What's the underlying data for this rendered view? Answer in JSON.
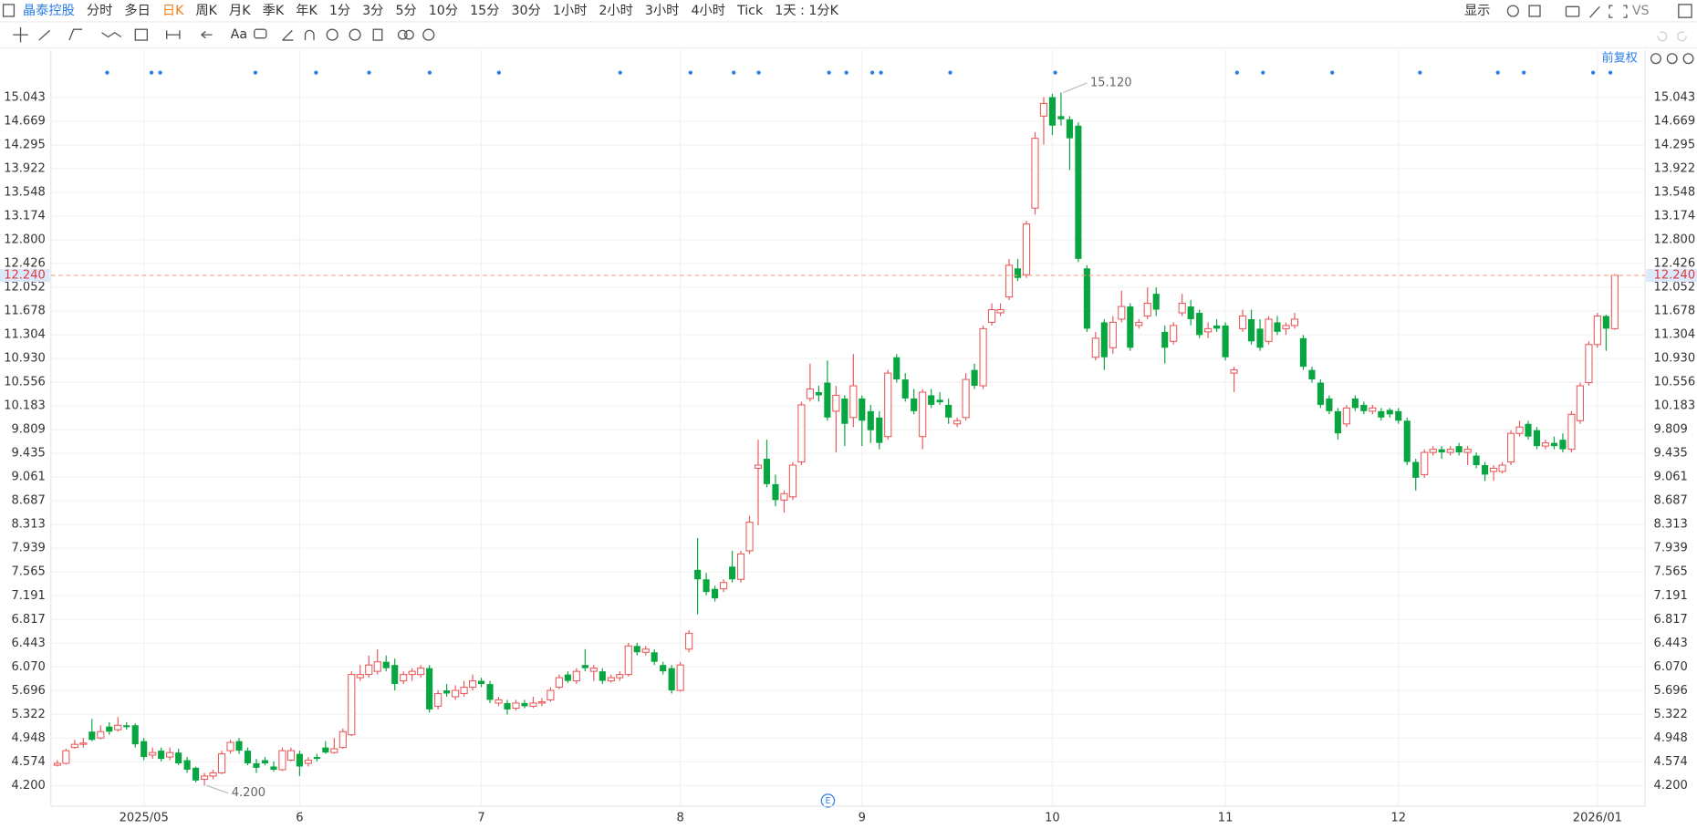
{
  "toolbar": {
    "symbol": "晶泰控股",
    "periods": [
      {
        "label": "分时"
      },
      {
        "label": "多日"
      },
      {
        "label": "日K",
        "active": true
      },
      {
        "label": "周K"
      },
      {
        "label": "月K"
      },
      {
        "label": "季K"
      },
      {
        "label": "年K"
      },
      {
        "label": "1分"
      },
      {
        "label": "3分"
      },
      {
        "label": "5分"
      },
      {
        "label": "10分"
      },
      {
        "label": "15分"
      },
      {
        "label": "30分"
      },
      {
        "label": "1小时"
      },
      {
        "label": "2小时"
      },
      {
        "label": "3小时"
      },
      {
        "label": "4小时"
      },
      {
        "label": "Tick"
      }
    ],
    "interval": "1天 : 1分K",
    "display": "显示",
    "compare": "VS",
    "text_tool": "Aa"
  },
  "chart_data": {
    "type": "candlestick",
    "adjustment": "前复权",
    "categories": [
      null,
      null,
      null,
      null,
      null,
      null,
      null,
      null,
      null,
      null,
      "2025/05",
      null,
      null,
      null,
      null,
      null,
      null,
      null,
      null,
      null,
      null,
      null,
      null,
      null,
      null,
      null,
      null,
      null,
      "6",
      null,
      null,
      null,
      null,
      null,
      null,
      null,
      null,
      null,
      null,
      null,
      null,
      null,
      null,
      null,
      null,
      null,
      null,
      null,
      null,
      "7",
      null,
      null,
      null,
      null,
      null,
      null,
      null,
      null,
      null,
      null,
      null,
      null,
      null,
      null,
      null,
      null,
      null,
      null,
      null,
      null,
      null,
      null,
      "8",
      null,
      null,
      null,
      null,
      null,
      null,
      null,
      null,
      null,
      null,
      null,
      null,
      null,
      null,
      null,
      null,
      null,
      null,
      null,
      null,
      "9",
      null,
      null,
      null,
      null,
      null,
      null,
      null,
      null,
      null,
      null,
      null,
      null,
      null,
      null,
      null,
      null,
      null,
      null,
      null,
      null,
      null,
      "10",
      null,
      null,
      null,
      null,
      null,
      null,
      null,
      null,
      null,
      null,
      null,
      null,
      null,
      null,
      null,
      null,
      null,
      null,
      null,
      "11",
      null,
      null,
      null,
      null,
      null,
      null,
      null,
      null,
      null,
      null,
      null,
      null,
      null,
      null,
      null,
      null,
      null,
      null,
      null,
      "12",
      null,
      null,
      null,
      null,
      null,
      null,
      null,
      null,
      null,
      null,
      null,
      null,
      null,
      null,
      null,
      null,
      null,
      null,
      null,
      null,
      null,
      null,
      "2026/01",
      null,
      null
    ],
    "ohlc": [
      [
        4.52,
        4.6,
        4.5,
        4.55
      ],
      [
        4.55,
        4.78,
        4.53,
        4.75
      ],
      [
        4.8,
        4.92,
        4.78,
        4.85
      ],
      [
        4.85,
        4.95,
        4.8,
        4.87
      ],
      [
        5.05,
        5.25,
        4.9,
        4.92
      ],
      [
        4.95,
        5.15,
        4.93,
        5.05
      ],
      [
        5.13,
        5.2,
        5.0,
        5.05
      ],
      [
        5.08,
        5.28,
        5.05,
        5.15
      ],
      [
        5.15,
        5.2,
        5.08,
        5.12
      ],
      [
        5.15,
        5.18,
        4.8,
        4.85
      ],
      [
        4.9,
        4.95,
        4.6,
        4.65
      ],
      [
        4.68,
        4.8,
        4.62,
        4.72
      ],
      [
        4.75,
        4.8,
        4.58,
        4.62
      ],
      [
        4.65,
        4.8,
        4.6,
        4.72
      ],
      [
        4.72,
        4.78,
        4.52,
        4.55
      ],
      [
        4.6,
        4.65,
        4.4,
        4.45
      ],
      [
        4.48,
        4.5,
        4.25,
        4.28
      ],
      [
        4.3,
        4.4,
        4.2,
        4.35
      ],
      [
        4.35,
        4.45,
        4.3,
        4.4
      ],
      [
        4.4,
        4.75,
        4.38,
        4.7
      ],
      [
        4.75,
        4.92,
        4.7,
        4.88
      ],
      [
        4.9,
        4.95,
        4.7,
        4.75
      ],
      [
        4.75,
        4.8,
        4.52,
        4.55
      ],
      [
        4.55,
        4.62,
        4.4,
        4.48
      ],
      [
        4.6,
        4.65,
        4.52,
        4.55
      ],
      [
        4.5,
        4.58,
        4.42,
        4.45
      ],
      [
        4.45,
        4.8,
        4.43,
        4.75
      ],
      [
        4.6,
        4.8,
        4.58,
        4.75
      ],
      [
        4.7,
        4.75,
        4.35,
        4.5
      ],
      [
        4.55,
        4.65,
        4.5,
        4.6
      ],
      [
        4.65,
        4.7,
        4.58,
        4.62
      ],
      [
        4.8,
        4.9,
        4.7,
        4.72
      ],
      [
        4.72,
        4.95,
        4.7,
        4.78
      ],
      [
        4.8,
        5.1,
        4.78,
        5.05
      ],
      [
        5.0,
        6.0,
        4.98,
        5.95
      ],
      [
        5.9,
        6.1,
        5.85,
        5.95
      ],
      [
        5.95,
        6.25,
        5.9,
        6.1
      ],
      [
        6.0,
        6.35,
        5.95,
        6.15
      ],
      [
        6.15,
        6.25,
        6.0,
        6.05
      ],
      [
        6.1,
        6.2,
        5.7,
        5.8
      ],
      [
        5.85,
        6.0,
        5.8,
        5.95
      ],
      [
        5.95,
        6.05,
        5.85,
        6.0
      ],
      [
        5.95,
        6.1,
        5.9,
        6.05
      ],
      [
        6.05,
        6.1,
        5.35,
        5.4
      ],
      [
        5.45,
        5.7,
        5.4,
        5.65
      ],
      [
        5.7,
        5.8,
        5.6,
        5.65
      ],
      [
        5.6,
        5.78,
        5.55,
        5.7
      ],
      [
        5.65,
        5.85,
        5.6,
        5.75
      ],
      [
        5.75,
        5.95,
        5.7,
        5.85
      ],
      [
        5.85,
        5.9,
        5.75,
        5.8
      ],
      [
        5.8,
        5.85,
        5.5,
        5.55
      ],
      [
        5.5,
        5.6,
        5.45,
        5.55
      ],
      [
        5.5,
        5.55,
        5.32,
        5.4
      ],
      [
        5.42,
        5.55,
        5.38,
        5.5
      ],
      [
        5.5,
        5.55,
        5.42,
        5.45
      ],
      [
        5.45,
        5.6,
        5.42,
        5.5
      ],
      [
        5.5,
        5.58,
        5.45,
        5.52
      ],
      [
        5.55,
        5.75,
        5.52,
        5.7
      ],
      [
        5.75,
        5.95,
        5.72,
        5.9
      ],
      [
        5.95,
        6.0,
        5.82,
        5.85
      ],
      [
        5.85,
        6.05,
        5.8,
        6.0
      ],
      [
        6.1,
        6.35,
        6.0,
        6.05
      ],
      [
        6.0,
        6.1,
        5.85,
        6.05
      ],
      [
        6.0,
        6.05,
        5.8,
        5.85
      ],
      [
        5.85,
        5.95,
        5.82,
        5.9
      ],
      [
        5.9,
        6.0,
        5.85,
        5.95
      ],
      [
        5.95,
        6.45,
        5.92,
        6.4
      ],
      [
        6.4,
        6.45,
        6.25,
        6.3
      ],
      [
        6.3,
        6.4,
        6.25,
        6.35
      ],
      [
        6.3,
        6.35,
        6.1,
        6.15
      ],
      [
        6.1,
        6.15,
        5.95,
        6.0
      ],
      [
        6.05,
        6.1,
        5.65,
        5.7
      ],
      [
        5.7,
        6.15,
        5.68,
        6.1
      ],
      [
        6.35,
        6.65,
        6.3,
        6.6
      ],
      [
        7.6,
        8.1,
        6.9,
        7.45
      ],
      [
        7.45,
        7.55,
        7.2,
        7.25
      ],
      [
        7.3,
        7.35,
        7.1,
        7.15
      ],
      [
        7.3,
        7.45,
        7.25,
        7.4
      ],
      [
        7.65,
        7.9,
        7.4,
        7.45
      ],
      [
        7.45,
        7.9,
        7.4,
        7.85
      ],
      [
        7.9,
        8.45,
        7.85,
        8.35
      ],
      [
        9.2,
        9.65,
        8.3,
        9.25
      ],
      [
        9.35,
        9.65,
        8.9,
        8.95
      ],
      [
        8.95,
        9.1,
        8.6,
        8.7
      ],
      [
        8.7,
        8.85,
        8.5,
        8.8
      ],
      [
        8.75,
        9.3,
        8.7,
        9.25
      ],
      [
        9.3,
        10.25,
        9.25,
        10.2
      ],
      [
        10.3,
        10.85,
        10.25,
        10.45
      ],
      [
        10.4,
        10.5,
        10.25,
        10.35
      ],
      [
        10.55,
        10.9,
        9.95,
        10.0
      ],
      [
        10.1,
        10.5,
        9.45,
        10.35
      ],
      [
        10.3,
        10.35,
        9.55,
        9.9
      ],
      [
        10.0,
        11.0,
        9.85,
        10.5
      ],
      [
        10.3,
        10.35,
        9.55,
        9.95
      ],
      [
        10.1,
        10.2,
        9.6,
        9.8
      ],
      [
        10.0,
        10.1,
        9.5,
        9.6
      ],
      [
        9.7,
        10.75,
        9.65,
        10.7
      ],
      [
        10.95,
        11.0,
        10.55,
        10.6
      ],
      [
        10.6,
        10.7,
        10.25,
        10.3
      ],
      [
        10.3,
        10.45,
        10.05,
        10.1
      ],
      [
        9.7,
        10.45,
        9.5,
        10.4
      ],
      [
        10.35,
        10.45,
        10.15,
        10.2
      ],
      [
        10.28,
        10.4,
        10.2,
        10.24
      ],
      [
        10.2,
        10.3,
        9.9,
        10.0
      ],
      [
        9.9,
        10.0,
        9.85,
        9.95
      ],
      [
        10.0,
        10.7,
        9.95,
        10.6
      ],
      [
        10.75,
        10.85,
        10.45,
        10.5
      ],
      [
        10.5,
        11.45,
        10.45,
        11.4
      ],
      [
        11.5,
        11.8,
        11.45,
        11.7
      ],
      [
        11.65,
        11.8,
        11.6,
        11.7
      ],
      [
        11.9,
        12.5,
        11.85,
        12.4
      ],
      [
        12.35,
        12.5,
        12.15,
        12.2
      ],
      [
        12.25,
        13.1,
        12.2,
        13.05
      ],
      [
        13.3,
        14.5,
        13.2,
        14.4
      ],
      [
        14.75,
        15.05,
        14.3,
        14.95
      ],
      [
        15.05,
        15.1,
        14.45,
        14.6
      ],
      [
        14.75,
        15.12,
        14.6,
        14.7
      ],
      [
        14.7,
        14.75,
        13.9,
        14.4
      ],
      [
        14.6,
        14.65,
        12.45,
        12.5
      ],
      [
        12.35,
        12.4,
        11.35,
        11.4
      ],
      [
        10.95,
        11.35,
        10.9,
        11.25
      ],
      [
        11.5,
        11.55,
        10.75,
        10.95
      ],
      [
        11.1,
        11.6,
        11.0,
        11.5
      ],
      [
        11.55,
        12.0,
        11.5,
        11.75
      ],
      [
        11.75,
        11.8,
        11.05,
        11.1
      ],
      [
        11.45,
        11.55,
        11.4,
        11.5
      ],
      [
        11.6,
        12.05,
        11.55,
        11.8
      ],
      [
        11.95,
        12.05,
        11.6,
        11.7
      ],
      [
        11.35,
        11.45,
        10.85,
        11.1
      ],
      [
        11.2,
        11.5,
        11.15,
        11.45
      ],
      [
        11.65,
        11.95,
        11.6,
        11.8
      ],
      [
        11.75,
        11.85,
        11.45,
        11.55
      ],
      [
        11.65,
        11.7,
        11.25,
        11.3
      ],
      [
        11.35,
        11.5,
        11.25,
        11.4
      ],
      [
        11.45,
        11.55,
        11.35,
        11.4
      ],
      [
        11.45,
        11.5,
        10.9,
        10.95
      ],
      [
        10.7,
        10.8,
        10.4,
        10.75
      ],
      [
        11.4,
        11.7,
        11.35,
        11.6
      ],
      [
        11.55,
        11.7,
        11.15,
        11.2
      ],
      [
        11.4,
        11.55,
        11.05,
        11.1
      ],
      [
        11.2,
        11.6,
        11.15,
        11.55
      ],
      [
        11.5,
        11.6,
        11.3,
        11.35
      ],
      [
        11.4,
        11.5,
        11.3,
        11.45
      ],
      [
        11.45,
        11.65,
        11.4,
        11.55
      ],
      [
        11.25,
        11.3,
        10.75,
        10.8
      ],
      [
        10.75,
        10.8,
        10.55,
        10.6
      ],
      [
        10.55,
        10.6,
        10.15,
        10.2
      ],
      [
        10.3,
        10.35,
        10.05,
        10.1
      ],
      [
        10.1,
        10.15,
        9.65,
        9.75
      ],
      [
        9.9,
        10.2,
        9.85,
        10.15
      ],
      [
        10.3,
        10.35,
        10.1,
        10.15
      ],
      [
        10.2,
        10.25,
        10.05,
        10.1
      ],
      [
        10.1,
        10.2,
        10.05,
        10.15
      ],
      [
        10.1,
        10.15,
        9.95,
        10.0
      ],
      [
        10.12,
        10.15,
        10.0,
        10.05
      ],
      [
        10.1,
        10.15,
        9.9,
        9.95
      ],
      [
        9.95,
        10.0,
        9.25,
        9.3
      ],
      [
        9.3,
        9.35,
        8.85,
        9.05
      ],
      [
        9.1,
        9.5,
        9.05,
        9.45
      ],
      [
        9.45,
        9.55,
        9.4,
        9.5
      ],
      [
        9.5,
        9.55,
        9.35,
        9.45
      ],
      [
        9.45,
        9.55,
        9.4,
        9.5
      ],
      [
        9.55,
        9.6,
        9.4,
        9.45
      ],
      [
        9.45,
        9.55,
        9.25,
        9.5
      ],
      [
        9.4,
        9.45,
        9.2,
        9.25
      ],
      [
        9.25,
        9.3,
        9.0,
        9.1
      ],
      [
        9.15,
        9.25,
        9.0,
        9.2
      ],
      [
        9.15,
        9.3,
        9.12,
        9.25
      ],
      [
        9.3,
        9.8,
        9.25,
        9.75
      ],
      [
        9.75,
        9.95,
        9.7,
        9.85
      ],
      [
        9.9,
        9.95,
        9.65,
        9.7
      ],
      [
        9.8,
        9.85,
        9.5,
        9.55
      ],
      [
        9.55,
        9.65,
        9.5,
        9.6
      ],
      [
        9.6,
        9.7,
        9.5,
        9.55
      ],
      [
        9.65,
        9.75,
        9.45,
        9.5
      ],
      [
        9.5,
        10.1,
        9.45,
        10.05
      ],
      [
        9.95,
        10.55,
        9.9,
        10.5
      ],
      [
        10.55,
        11.2,
        10.5,
        11.15
      ],
      [
        11.15,
        11.65,
        11.1,
        11.6
      ],
      [
        11.6,
        11.62,
        11.05,
        11.4
      ],
      [
        11.4,
        12.26,
        11.38,
        12.24
      ]
    ],
    "up_color": "#eb5a5c",
    "down_color": "#08a640",
    "ylim": [
      3.876,
      15.793
    ],
    "yticks": [
      {
        "value": 4.2,
        "label": "4.200"
      },
      4.574,
      4.948,
      5.322,
      5.696,
      {
        "value": 6.07,
        "label": "6.070"
      },
      6.443,
      6.817,
      7.191,
      7.565,
      7.939,
      8.313,
      8.687,
      9.061,
      9.435,
      9.809,
      10.183,
      10.556,
      {
        "value": 10.93,
        "label": "10.930"
      },
      11.304,
      11.678,
      12.052,
      12.426,
      {
        "value": 12.8,
        "label": "12.800"
      },
      13.174,
      13.548,
      13.922,
      14.295,
      14.669,
      15.043
    ],
    "grid": true,
    "last_price": {
      "value": 12.24,
      "label": "12.240"
    },
    "max_label": {
      "value": 15.12,
      "label": "15.120"
    },
    "min_label": {
      "value": 4.2,
      "label": "4.200"
    }
  }
}
